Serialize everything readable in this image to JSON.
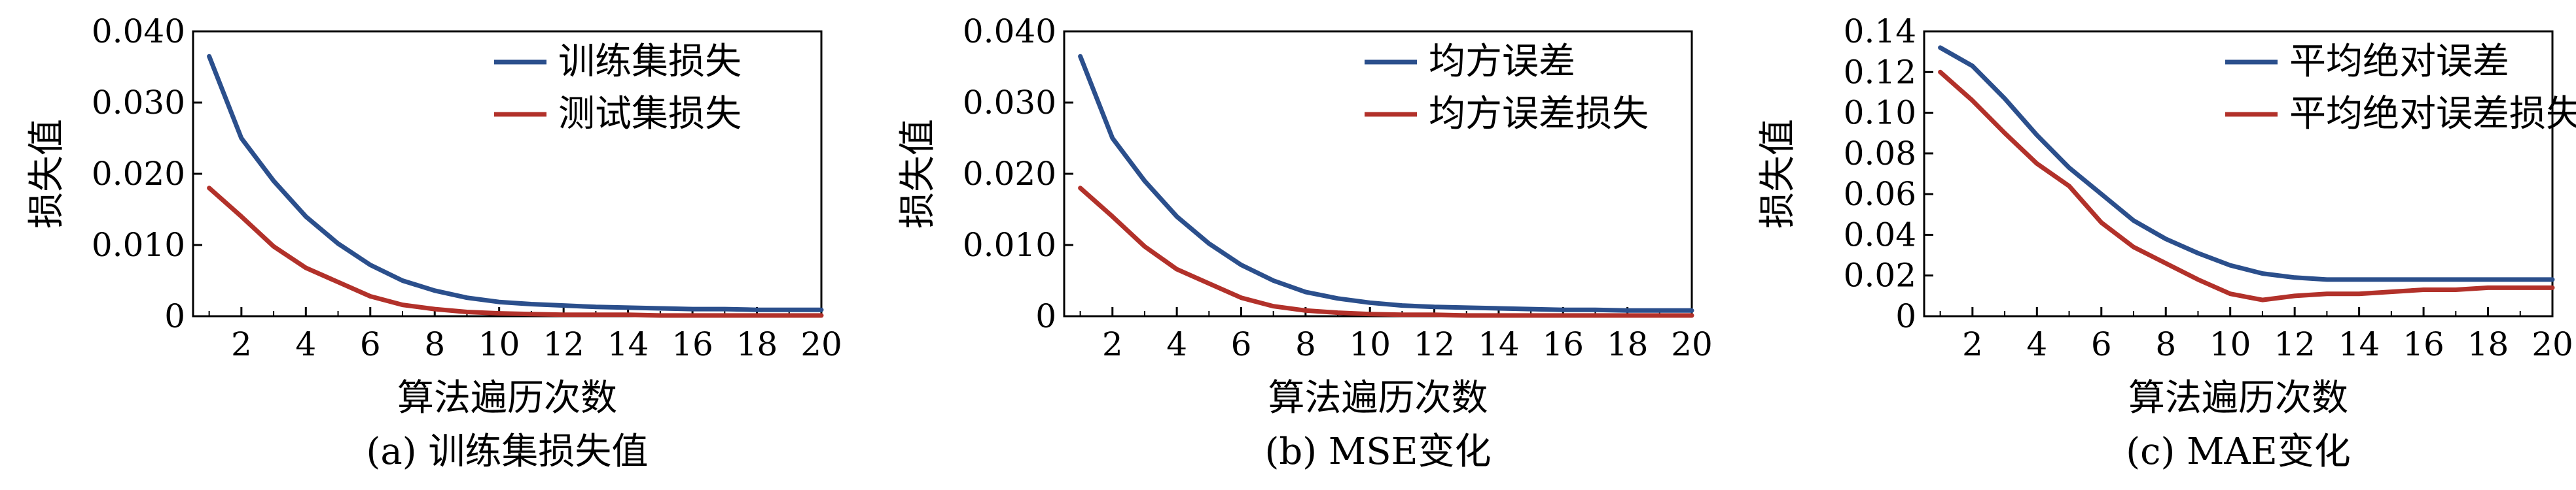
{
  "chart_data": [
    {
      "type": "line",
      "caption": "(a) 训练集损失值",
      "xlabel": "算法遍历次数",
      "ylabel": "损失值",
      "xlim": [
        0.5,
        20
      ],
      "ylim": [
        0,
        0.04
      ],
      "xticks": [
        2,
        4,
        6,
        8,
        10,
        12,
        14,
        16,
        18,
        20
      ],
      "yticks": [
        0,
        0.01,
        0.02,
        0.03,
        0.04
      ],
      "ytick_labels": [
        "0",
        "0.010",
        "0.020",
        "0.030",
        "0.040"
      ],
      "legend_position": "top-right",
      "x": [
        1,
        2,
        3,
        4,
        5,
        6,
        7,
        8,
        9,
        10,
        11,
        12,
        13,
        14,
        15,
        16,
        17,
        18,
        19,
        20
      ],
      "series": [
        {
          "name": "训练集损失",
          "color": "#2b4f8c",
          "values": [
            0.0365,
            0.025,
            0.019,
            0.014,
            0.0102,
            0.0072,
            0.005,
            0.0036,
            0.0026,
            0.002,
            0.0017,
            0.0015,
            0.0013,
            0.0012,
            0.0011,
            0.001,
            0.001,
            0.0009,
            0.0009,
            0.0009
          ]
        },
        {
          "name": "测试集损失",
          "color": "#b2312a",
          "values": [
            0.018,
            0.014,
            0.0098,
            0.0068,
            0.0048,
            0.0028,
            0.0016,
            0.001,
            0.0006,
            0.0004,
            0.0003,
            0.0002,
            0.0002,
            0.0002,
            0.0001,
            0.0001,
            0.0001,
            0.0001,
            0.0001,
            0.0001
          ]
        }
      ]
    },
    {
      "type": "line",
      "caption": "(b) MSE变化",
      "xlabel": "算法遍历次数",
      "ylabel": "损失值",
      "xlim": [
        0.5,
        20
      ],
      "ylim": [
        0,
        0.04
      ],
      "xticks": [
        2,
        4,
        6,
        8,
        10,
        12,
        14,
        16,
        18,
        20
      ],
      "yticks": [
        0,
        0.01,
        0.02,
        0.03,
        0.04
      ],
      "ytick_labels": [
        "0",
        "0.010",
        "0.020",
        "0.030",
        "0.040"
      ],
      "legend_position": "top-right",
      "x": [
        1,
        2,
        3,
        4,
        5,
        6,
        7,
        8,
        9,
        10,
        11,
        12,
        13,
        14,
        15,
        16,
        17,
        18,
        19,
        20
      ],
      "series": [
        {
          "name": "均方误差",
          "color": "#2b4f8c",
          "values": [
            0.0365,
            0.025,
            0.019,
            0.014,
            0.0102,
            0.0072,
            0.005,
            0.0034,
            0.0025,
            0.0019,
            0.0015,
            0.0013,
            0.0012,
            0.0011,
            0.001,
            0.0009,
            0.0009,
            0.0008,
            0.0008,
            0.0008
          ]
        },
        {
          "name": "均方误差损失",
          "color": "#b2312a",
          "values": [
            0.018,
            0.014,
            0.0098,
            0.0066,
            0.0046,
            0.0026,
            0.0014,
            0.0008,
            0.0005,
            0.0003,
            0.0002,
            0.0002,
            0.0001,
            0.0001,
            0.0001,
            0.0001,
            0.0001,
            0.0001,
            0.0001,
            0.0001
          ]
        }
      ]
    },
    {
      "type": "line",
      "caption": "(c) MAE变化",
      "xlabel": "算法遍历次数",
      "ylabel": "损失值",
      "xlim": [
        0.5,
        20
      ],
      "ylim": [
        0,
        0.14
      ],
      "xticks": [
        2,
        4,
        6,
        8,
        10,
        12,
        14,
        16,
        18,
        20
      ],
      "yticks": [
        0,
        0.02,
        0.04,
        0.06,
        0.08,
        0.1,
        0.12,
        0.14
      ],
      "ytick_labels": [
        "0",
        "0.02",
        "0.04",
        "0.06",
        "0.08",
        "0.10",
        "0.12",
        "0.14"
      ],
      "legend_position": "top-right",
      "x": [
        1,
        2,
        3,
        4,
        5,
        6,
        7,
        8,
        9,
        10,
        11,
        12,
        13,
        14,
        15,
        16,
        17,
        18,
        19,
        20
      ],
      "series": [
        {
          "name": "平均绝对误差",
          "color": "#2b4f8c",
          "values": [
            0.132,
            0.123,
            0.107,
            0.089,
            0.073,
            0.06,
            0.047,
            0.038,
            0.031,
            0.025,
            0.021,
            0.019,
            0.018,
            0.018,
            0.018,
            0.018,
            0.018,
            0.018,
            0.018,
            0.018
          ]
        },
        {
          "name": "平均绝对误差损失",
          "color": "#b2312a",
          "values": [
            0.12,
            0.106,
            0.09,
            0.075,
            0.064,
            0.046,
            0.034,
            0.026,
            0.018,
            0.011,
            0.008,
            0.01,
            0.011,
            0.011,
            0.012,
            0.013,
            0.013,
            0.014,
            0.014,
            0.014
          ]
        }
      ]
    }
  ]
}
